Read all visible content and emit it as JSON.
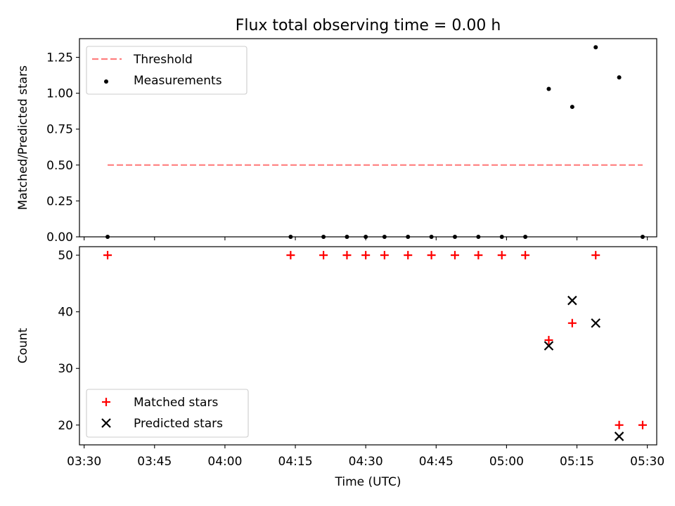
{
  "chart_data": [
    {
      "type": "scatter",
      "title": "Flux total observing time = 0.00 h",
      "xlabel": "",
      "ylabel": "Matched/Predicted stars",
      "xlim": [
        "03:29",
        "05:32"
      ],
      "ylim": [
        0,
        1.38
      ],
      "yticks": [
        "0.00",
        "0.25",
        "0.50",
        "0.75",
        "1.00",
        "1.25"
      ],
      "legend": "upper-left",
      "grid": false,
      "series": [
        {
          "name": "Threshold",
          "kind": "line",
          "style": "dashed",
          "color": "#ff7f7f",
          "points": [
            {
              "x": "03:35",
              "y": 0.5
            },
            {
              "x": "05:29",
              "y": 0.5
            }
          ]
        },
        {
          "name": "Measurements",
          "kind": "scatter",
          "marker": "dot",
          "color": "#000000",
          "points": [
            {
              "x": "03:35",
              "y": 0.0
            },
            {
              "x": "04:14",
              "y": 0.0
            },
            {
              "x": "04:21",
              "y": 0.0
            },
            {
              "x": "04:26",
              "y": 0.0
            },
            {
              "x": "04:30",
              "y": 0.0
            },
            {
              "x": "04:34",
              "y": 0.0
            },
            {
              "x": "04:39",
              "y": 0.0
            },
            {
              "x": "04:44",
              "y": 0.0
            },
            {
              "x": "04:49",
              "y": 0.0
            },
            {
              "x": "04:54",
              "y": 0.0
            },
            {
              "x": "04:59",
              "y": 0.0
            },
            {
              "x": "05:04",
              "y": 0.0
            },
            {
              "x": "05:09",
              "y": 1.03
            },
            {
              "x": "05:14",
              "y": 0.905
            },
            {
              "x": "05:19",
              "y": 1.32
            },
            {
              "x": "05:24",
              "y": 1.11
            },
            {
              "x": "05:29",
              "y": 0.0
            }
          ]
        }
      ]
    },
    {
      "type": "scatter",
      "title": "",
      "xlabel": "Time (UTC)",
      "ylabel": "Count",
      "xlim": [
        "03:29",
        "05:32"
      ],
      "ylim": [
        16.5,
        51.5
      ],
      "xticks": [
        "03:30",
        "03:45",
        "04:00",
        "04:15",
        "04:30",
        "04:45",
        "05:00",
        "05:15",
        "05:30"
      ],
      "yticks": [
        "20",
        "30",
        "40",
        "50"
      ],
      "legend": "lower-left",
      "grid": false,
      "series": [
        {
          "name": "Matched stars",
          "marker": "plus",
          "color": "#ff0000",
          "points": [
            {
              "x": "03:35",
              "y": 50
            },
            {
              "x": "04:14",
              "y": 50
            },
            {
              "x": "04:21",
              "y": 50
            },
            {
              "x": "04:26",
              "y": 50
            },
            {
              "x": "04:30",
              "y": 50
            },
            {
              "x": "04:34",
              "y": 50
            },
            {
              "x": "04:39",
              "y": 50
            },
            {
              "x": "04:44",
              "y": 50
            },
            {
              "x": "04:49",
              "y": 50
            },
            {
              "x": "04:54",
              "y": 50
            },
            {
              "x": "04:59",
              "y": 50
            },
            {
              "x": "05:04",
              "y": 50
            },
            {
              "x": "05:09",
              "y": 35
            },
            {
              "x": "05:14",
              "y": 38
            },
            {
              "x": "05:19",
              "y": 50
            },
            {
              "x": "05:24",
              "y": 20
            },
            {
              "x": "05:29",
              "y": 20
            }
          ]
        },
        {
          "name": "Predicted stars",
          "marker": "x",
          "color": "#000000",
          "points": [
            {
              "x": "05:09",
              "y": 34
            },
            {
              "x": "05:14",
              "y": 42
            },
            {
              "x": "05:19",
              "y": 38
            },
            {
              "x": "05:24",
              "y": 18
            }
          ]
        }
      ]
    }
  ]
}
